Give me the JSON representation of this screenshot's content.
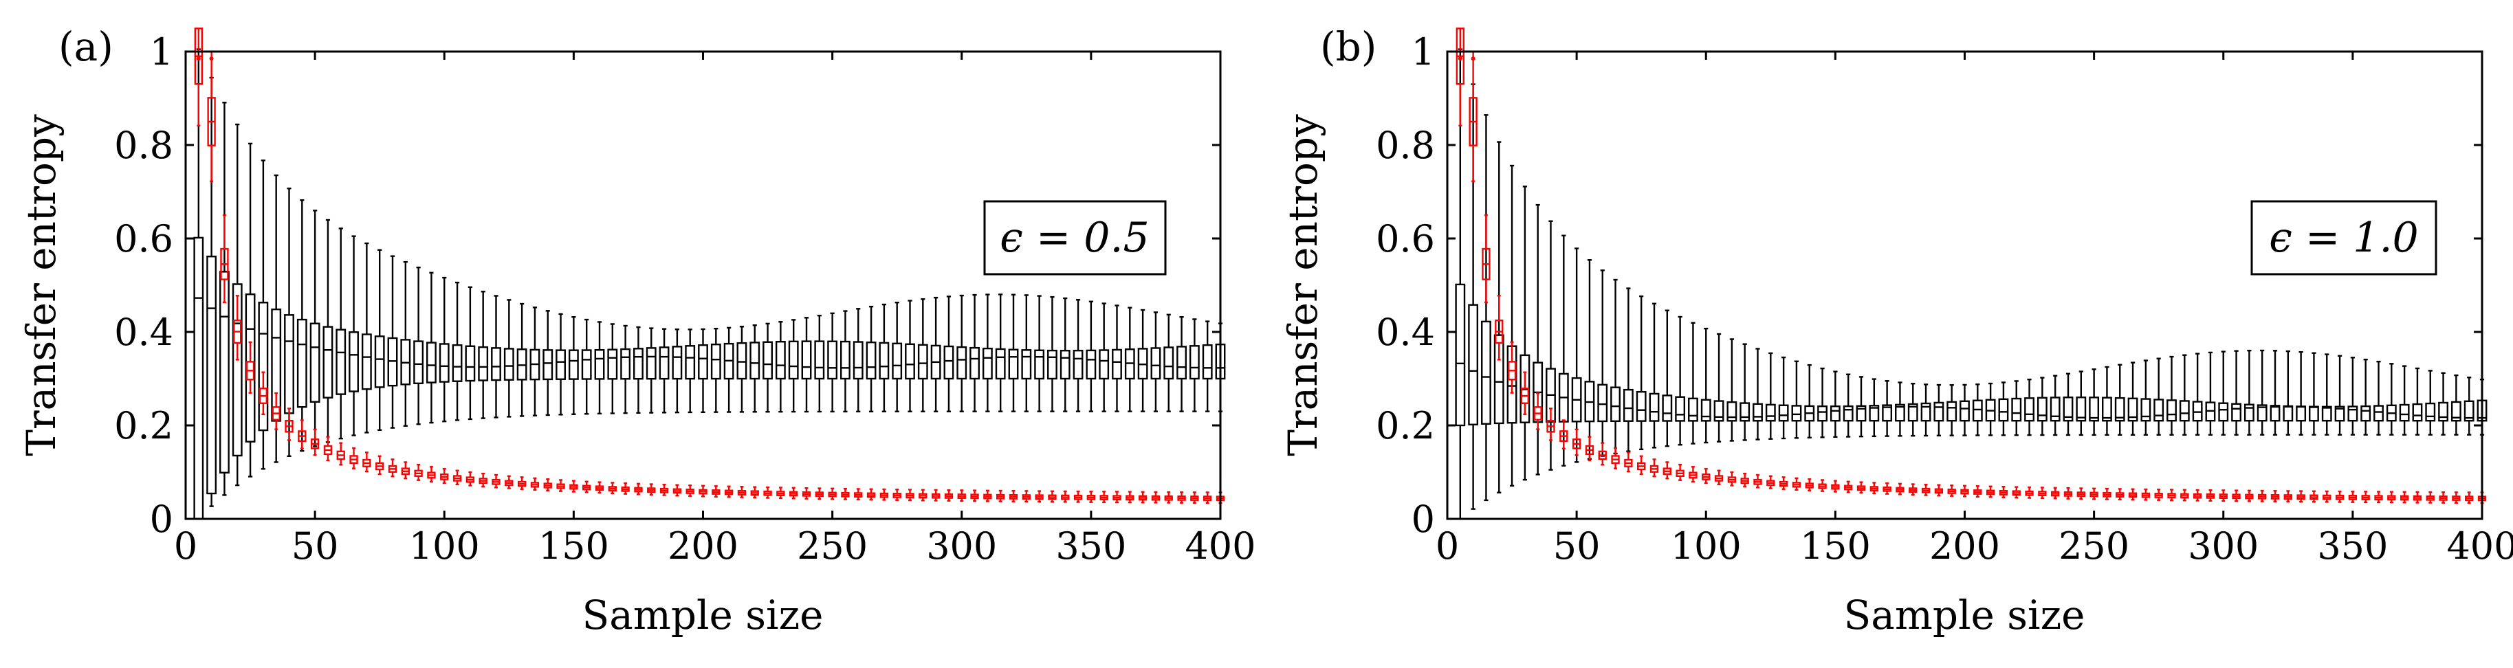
{
  "chart_data": [
    {
      "type": "boxplot",
      "panel_label": "(a)",
      "annotation": "ϵ = 0.5",
      "xlabel": "Sample size",
      "ylabel": "Transfer entropy",
      "xlim": [
        0,
        400
      ],
      "ylim": [
        0,
        1
      ],
      "xticks": [
        "0",
        "50",
        "100",
        "150",
        "200",
        "250",
        "300",
        "350",
        "400"
      ],
      "yticks": [
        "0",
        "0.2",
        "0.4",
        "0.6",
        "0.8",
        "1"
      ],
      "x_positions": "5 to 400 in steps of 5 (80 sample sizes)",
      "series": [
        {
          "name": "black",
          "color": "#000000",
          "stats": {
            "q1_start": 0.0,
            "q1_end": 0.3,
            "med_start": 0.47,
            "med_end": 0.335,
            "q3_start": 0.6,
            "q3_end": 0.37,
            "wlo_start": 0.0,
            "wlo_end": 0.23,
            "whi_start": 1.0,
            "whi_end": 0.44
          }
        },
        {
          "name": "red",
          "color": "#ff0000",
          "stats": {
            "med_peak": 0.85,
            "med_end": 0.032,
            "box_peak_lo": 0.8,
            "box_peak_hi": 0.9,
            "outlier_top": 0.985
          }
        }
      ]
    },
    {
      "type": "boxplot",
      "panel_label": "(b)",
      "annotation": "ϵ = 1.0",
      "xlabel": "Sample size",
      "ylabel": "Transfer entropy",
      "xlim": [
        0,
        400
      ],
      "ylim": [
        0,
        1
      ],
      "xticks": [
        "0",
        "50",
        "100",
        "150",
        "200",
        "250",
        "300",
        "350",
        "400"
      ],
      "yticks": [
        "0",
        "0.2",
        "0.4",
        "0.6",
        "0.8",
        "1"
      ],
      "x_positions": "5 to 400 in steps of 5 (80 sample sizes)",
      "series": [
        {
          "name": "black",
          "color": "#000000",
          "stats": {
            "q1_start": 0.2,
            "q1_end": 0.21,
            "med_start": 0.33,
            "med_end": 0.228,
            "q3_start": 0.5,
            "q3_end": 0.25,
            "wlo_start": 0.0,
            "wlo_end": 0.18,
            "whi_start": 1.0,
            "whi_end": 0.32
          }
        },
        {
          "name": "red",
          "color": "#ff0000",
          "stats": {
            "med_peak": 0.85,
            "med_end": 0.032,
            "box_peak_lo": 0.8,
            "box_peak_hi": 0.9,
            "outlier_top": 0.985
          }
        }
      ]
    }
  ]
}
